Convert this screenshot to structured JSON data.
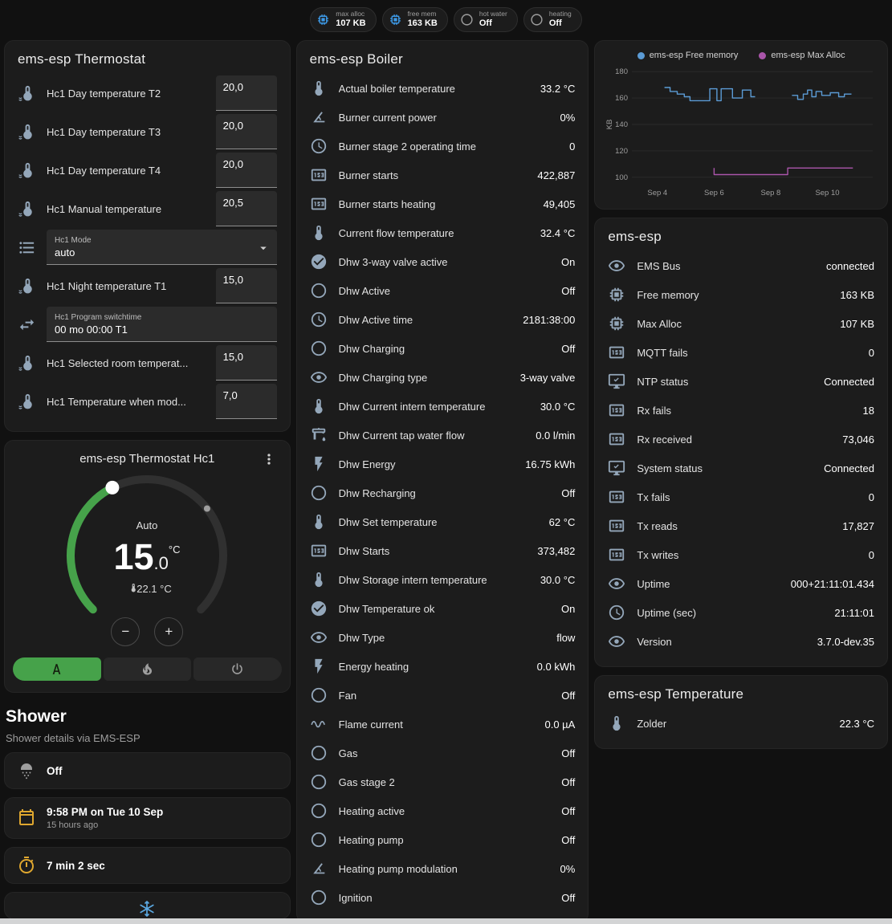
{
  "colors": {
    "accent_green": "#46a24a",
    "chip_blue": "#3d9ae8",
    "amber": "#dfa72f",
    "legend_blue": "#5b9bd5",
    "legend_purple": "#aa55aa"
  },
  "topbar": {
    "chips": [
      {
        "icon": "memory-chip",
        "style": "blue",
        "label": "max alloc",
        "value": "107 KB"
      },
      {
        "icon": "memory-chip",
        "style": "blue",
        "label": "free mem",
        "value": "163 KB"
      },
      {
        "icon": "radio-circle",
        "style": "gray",
        "label": "hot water",
        "value": "Off"
      },
      {
        "icon": "radio-circle",
        "style": "gray",
        "label": "heating",
        "value": "Off"
      }
    ]
  },
  "thermostat_card": {
    "title": "ems-esp Thermostat",
    "rows": [
      {
        "type": "number",
        "icon": "thermometer-water",
        "label": "Hc1 Day temperature T2",
        "value": "20,0"
      },
      {
        "type": "number",
        "icon": "thermometer-water",
        "label": "Hc1 Day temperature T3",
        "value": "20,0"
      },
      {
        "type": "number",
        "icon": "thermometer-water",
        "label": "Hc1 Day temperature T4",
        "value": "20,0"
      },
      {
        "type": "number",
        "icon": "thermometer-water",
        "label": "Hc1 Manual temperature",
        "value": "20,5"
      },
      {
        "type": "select",
        "icon": "list",
        "label": "Hc1 Mode",
        "value": "auto"
      },
      {
        "type": "number",
        "icon": "thermometer-water",
        "label": "Hc1 Night temperature T1",
        "value": "15,0"
      },
      {
        "type": "text",
        "icon": "swap",
        "label": "Hc1 Program switchtime",
        "value": "00 mo 00:00 T1"
      },
      {
        "type": "number",
        "icon": "thermometer-water",
        "label": "Hc1 Selected room temperat...",
        "value": "15,0"
      },
      {
        "type": "number",
        "icon": "thermometer-water",
        "label": "Hc1 Temperature when mod...",
        "value": "7,0"
      }
    ]
  },
  "dial_card": {
    "title": "ems-esp Thermostat Hc1",
    "mode_label": "Auto",
    "target_main": "15",
    "target_decimal": ".0",
    "unit": "°C",
    "current_temp": "22.1 °C",
    "minus": "−",
    "plus": "+"
  },
  "shower": {
    "title": "Shower",
    "subtitle": "Shower details via EMS-ESP",
    "cards": [
      {
        "icon": "shower",
        "icon_style": "gray",
        "primary": "Off",
        "secondary": ""
      },
      {
        "icon": "calendar",
        "icon_style": "amber",
        "primary": "9:58 PM on Tue 10 Sep",
        "secondary": "15 hours ago"
      },
      {
        "icon": "timer",
        "icon_style": "amber",
        "primary": "7 min 2 sec",
        "secondary": ""
      }
    ]
  },
  "boiler_card": {
    "title": "ems-esp Boiler",
    "rows": [
      {
        "icon": "thermometer",
        "label": "Actual boiler temperature",
        "value": "33.2 °C"
      },
      {
        "icon": "angle",
        "label": "Burner current power",
        "value": "0%"
      },
      {
        "icon": "clock",
        "label": "Burner stage 2 operating time",
        "value": "0"
      },
      {
        "icon": "counter",
        "label": "Burner starts",
        "value": "422,887"
      },
      {
        "icon": "counter",
        "label": "Burner starts heating",
        "value": "49,405"
      },
      {
        "icon": "thermometer",
        "label": "Current flow temperature",
        "value": "32.4 °C"
      },
      {
        "icon": "check-circle",
        "label": "Dhw 3-way valve active",
        "value": "On"
      },
      {
        "icon": "radio-circle",
        "label": "Dhw Active",
        "value": "Off"
      },
      {
        "icon": "clock",
        "label": "Dhw Active time",
        "value": "2181:38:00"
      },
      {
        "icon": "radio-circle",
        "label": "Dhw Charging",
        "value": "Off"
      },
      {
        "icon": "eye",
        "label": "Dhw Charging type",
        "value": "3-way valve"
      },
      {
        "icon": "thermometer",
        "label": "Dhw Current intern temperature",
        "value": "30.0 °C"
      },
      {
        "icon": "pump",
        "label": "Dhw Current tap water flow",
        "value": "0.0 l/min"
      },
      {
        "icon": "flash",
        "label": "Dhw Energy",
        "value": "16.75 kWh"
      },
      {
        "icon": "radio-circle",
        "label": "Dhw Recharging",
        "value": "Off"
      },
      {
        "icon": "thermometer",
        "label": "Dhw Set temperature",
        "value": "62 °C"
      },
      {
        "icon": "counter",
        "label": "Dhw Starts",
        "value": "373,482"
      },
      {
        "icon": "thermometer",
        "label": "Dhw Storage intern temperature",
        "value": "30.0 °C"
      },
      {
        "icon": "check-circle",
        "label": "Dhw Temperature ok",
        "value": "On"
      },
      {
        "icon": "eye",
        "label": "Dhw Type",
        "value": "flow"
      },
      {
        "icon": "flash",
        "label": "Energy heating",
        "value": "0.0 kWh"
      },
      {
        "icon": "radio-circle",
        "label": "Fan",
        "value": "Off"
      },
      {
        "icon": "current",
        "label": "Flame current",
        "value": "0.0 µA"
      },
      {
        "icon": "radio-circle",
        "label": "Gas",
        "value": "Off"
      },
      {
        "icon": "radio-circle",
        "label": "Gas stage 2",
        "value": "Off"
      },
      {
        "icon": "radio-circle",
        "label": "Heating active",
        "value": "Off"
      },
      {
        "icon": "radio-circle",
        "label": "Heating pump",
        "value": "Off"
      },
      {
        "icon": "angle",
        "label": "Heating pump modulation",
        "value": "0%"
      },
      {
        "icon": "radio-circle",
        "label": "Ignition",
        "value": "Off"
      }
    ]
  },
  "chart_card": {
    "legend": [
      {
        "label": "ems-esp Free memory",
        "color": "#5b9bd5"
      },
      {
        "label": "ems-esp Max Alloc",
        "color": "#aa55aa"
      }
    ],
    "ylabel": "KB",
    "yticks": [
      180,
      160,
      140,
      120,
      100
    ],
    "xticks": [
      "Sep 4",
      "Sep 6",
      "Sep 8",
      "Sep 10"
    ]
  },
  "chart_data": {
    "type": "line",
    "title": "",
    "xlabel": "",
    "ylabel": "KB",
    "ylim": [
      95,
      185
    ],
    "xlim": [
      3.1,
      11.6
    ],
    "xtick_positions": [
      4,
      6,
      8,
      10
    ],
    "xtick_labels": [
      "Sep 4",
      "Sep 6",
      "Sep 8",
      "Sep 10"
    ],
    "legend_position": "top",
    "grid": true,
    "series": [
      {
        "name": "ems-esp Free memory",
        "color": "#5b9bd5",
        "unit": "KB",
        "segments": [
          [
            [
              4.25,
              168
            ],
            [
              4.45,
              168
            ],
            [
              4.45,
              165
            ],
            [
              4.7,
              165
            ],
            [
              4.7,
              163
            ],
            [
              4.95,
              163
            ],
            [
              4.95,
              161
            ],
            [
              5.15,
              161
            ],
            [
              5.15,
              158
            ],
            [
              5.85,
              158
            ],
            [
              5.85,
              167
            ],
            [
              6.1,
              167
            ],
            [
              6.1,
              158
            ],
            [
              6.25,
              158
            ],
            [
              6.25,
              167
            ],
            [
              6.65,
              167
            ],
            [
              6.65,
              160
            ],
            [
              7.0,
              160
            ],
            [
              7.0,
              166
            ],
            [
              7.3,
              166
            ],
            [
              7.3,
              161
            ],
            [
              7.45,
              161
            ]
          ],
          [
            [
              8.75,
              162
            ],
            [
              8.95,
              162
            ],
            [
              8.95,
              159
            ],
            [
              9.15,
              159
            ],
            [
              9.15,
              163
            ],
            [
              9.3,
              163
            ],
            [
              9.3,
              166
            ],
            [
              9.45,
              166
            ],
            [
              9.45,
              161
            ],
            [
              9.6,
              161
            ],
            [
              9.6,
              165
            ],
            [
              9.8,
              165
            ],
            [
              9.8,
              162
            ],
            [
              10.1,
              162
            ],
            [
              10.1,
              164
            ],
            [
              10.4,
              164
            ],
            [
              10.4,
              161
            ],
            [
              10.6,
              161
            ],
            [
              10.6,
              163
            ],
            [
              10.85,
              163
            ]
          ]
        ]
      },
      {
        "name": "ems-esp Max Alloc",
        "color": "#aa55aa",
        "unit": "KB",
        "segments": [
          [
            [
              6.0,
              107
            ],
            [
              6.0,
              102
            ],
            [
              8.6,
              102
            ],
            [
              8.6,
              107
            ],
            [
              10.9,
              107
            ]
          ]
        ]
      }
    ]
  },
  "emsesp_card": {
    "title": "ems-esp",
    "rows": [
      {
        "icon": "eye",
        "label": "EMS Bus",
        "value": "connected"
      },
      {
        "icon": "memory-chip",
        "label": "Free memory",
        "value": "163 KB"
      },
      {
        "icon": "memory-chip",
        "label": "Max Alloc",
        "value": "107 KB"
      },
      {
        "icon": "counter",
        "label": "MQTT fails",
        "value": "0"
      },
      {
        "icon": "monitor",
        "label": "NTP status",
        "value": "Connected"
      },
      {
        "icon": "counter",
        "label": "Rx fails",
        "value": "18"
      },
      {
        "icon": "counter",
        "label": "Rx received",
        "value": "73,046"
      },
      {
        "icon": "monitor",
        "label": "System status",
        "value": "Connected"
      },
      {
        "icon": "counter",
        "label": "Tx fails",
        "value": "0"
      },
      {
        "icon": "counter",
        "label": "Tx reads",
        "value": "17,827"
      },
      {
        "icon": "counter",
        "label": "Tx writes",
        "value": "0"
      },
      {
        "icon": "eye",
        "label": "Uptime",
        "value": "000+21:11:01.434"
      },
      {
        "icon": "clock",
        "label": "Uptime (sec)",
        "value": "21:11:01"
      },
      {
        "icon": "eye",
        "label": "Version",
        "value": "3.7.0-dev.35"
      }
    ]
  },
  "temperature_card": {
    "title": "ems-esp Temperature",
    "rows": [
      {
        "icon": "thermometer",
        "label": "Zolder",
        "value": "22.3 °C"
      }
    ]
  }
}
